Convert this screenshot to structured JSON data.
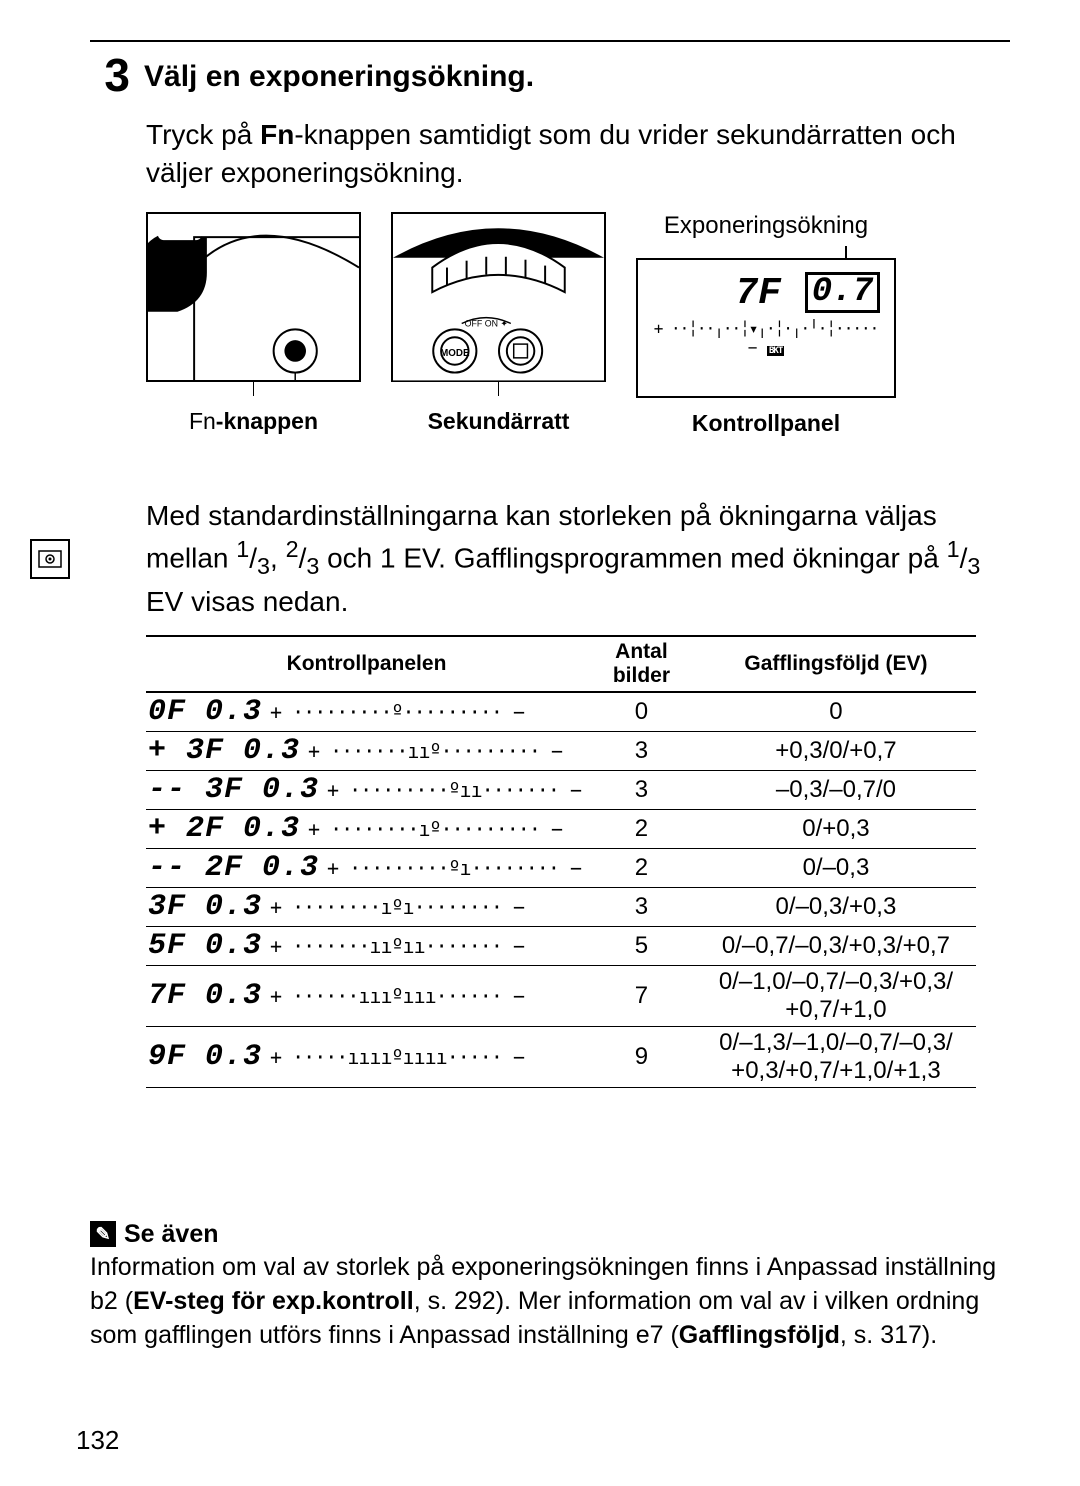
{
  "step_number": "3",
  "step_title": "Välj en exponeringsökning.",
  "intro_part1": "Tryck på ",
  "intro_fn": "Fn",
  "intro_part2": "-knappen samtidigt som du vrider sekundärratten och väljer exponeringsökning.",
  "diagram_labels": {
    "top_right": "Exponeringsökning",
    "fn_button": "-knappen",
    "fn_prefix": "Fn",
    "secondary_dial": "Sekundärratt",
    "control_panel": "Kontrollpanel"
  },
  "lcd": {
    "val1": "7F",
    "val2": "0.7",
    "scale": "+ ··╎··╷··╎▾╷·╎·╷·╵·╎····· −",
    "bkt": "BKT"
  },
  "mid_text": "Med standardinställningarna kan storleken på ökningarna väljas mellan 1/3, 2/3 och 1 EV. Gafflingsprogrammen med ökningar på 1/3 EV visas nedan.",
  "table": {
    "headers": [
      "Kontrollpanelen",
      "Antal bilder",
      "Gafflingsföljd (EV)"
    ],
    "rows": [
      {
        "seg": "0F 0.3",
        "bar": "+ ·········º········· −",
        "count": "0",
        "seq": "0"
      },
      {
        "seg": "+ 3F 0.3",
        "bar": "+ ·······ııº········· −",
        "count": "3",
        "seq": "+0,3/0/+0,7"
      },
      {
        "seg": "-- 3F 0.3",
        "bar": "+ ·········ºıı······· −",
        "count": "3",
        "seq": "–0,3/–0,7/0"
      },
      {
        "seg": "+ 2F 0.3",
        "bar": "+ ········ıº········· −",
        "count": "2",
        "seq": "0/+0,3"
      },
      {
        "seg": "-- 2F 0.3",
        "bar": "+ ·········ºı········ −",
        "count": "2",
        "seq": "0/–0,3"
      },
      {
        "seg": "3F 0.3",
        "bar": "+ ········ıºı········ −",
        "count": "3",
        "seq": "0/–0,3/+0,3"
      },
      {
        "seg": "5F 0.3",
        "bar": "+ ·······ııºıı······· −",
        "count": "5",
        "seq": "0/–0,7/–0,3/+0,3/+0,7"
      },
      {
        "seg": "7F 0.3",
        "bar": "+ ······ıııºııı······ −",
        "count": "7",
        "seq": "0/–1,0/–0,7/–0,3/+0,3/\n+0,7/+1,0"
      },
      {
        "seg": "9F 0.3",
        "bar": "+ ·····ııııºıııı····· −",
        "count": "9",
        "seq": "0/–1,3/–1,0/–0,7/–0,3/\n+0,3/+0,7/+1,0/+1,3"
      }
    ]
  },
  "see_also": {
    "heading": "Se även",
    "body_parts": [
      "Information om val av storlek på exponeringsökningen finns i Anpassad inställning b2 (",
      "EV-steg för exp.kontroll",
      ", s. 292). Mer information om val av i vilken ordning som gafflingen utförs finns i Anpassad inställning e7 (",
      "Gafflingsföljd",
      ", s. 317)."
    ]
  },
  "page_number": "132"
}
